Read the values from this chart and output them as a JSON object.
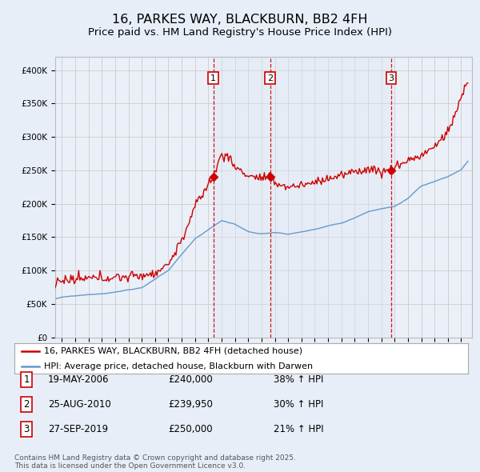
{
  "title": "16, PARKES WAY, BLACKBURN, BB2 4FH",
  "subtitle": "Price paid vs. HM Land Registry's House Price Index (HPI)",
  "title_fontsize": 11.5,
  "subtitle_fontsize": 9.5,
  "bg_color": "#e8eef8",
  "plot_bg_color": "#eaeff8",
  "grid_color": "#cccccc",
  "shade_color": "#dce8f5",
  "ylim": [
    0,
    420000
  ],
  "xlim_start": 1994.5,
  "xlim_end": 2025.8,
  "sale_dates": [
    2006.38,
    2010.65,
    2019.75
  ],
  "sale_prices": [
    240000,
    239950,
    250000
  ],
  "sale_labels": [
    "1",
    "2",
    "3"
  ],
  "sale_info": [
    [
      "1",
      "19-MAY-2006",
      "£240,000",
      "38% ↑ HPI"
    ],
    [
      "2",
      "25-AUG-2010",
      "£239,950",
      "30% ↑ HPI"
    ],
    [
      "3",
      "27-SEP-2019",
      "£250,000",
      "21% ↑ HPI"
    ]
  ],
  "legend_line1": "16, PARKES WAY, BLACKBURN, BB2 4FH (detached house)",
  "legend_line2": "HPI: Average price, detached house, Blackburn with Darwen",
  "footer": "Contains HM Land Registry data © Crown copyright and database right 2025.\nThis data is licensed under the Open Government Licence v3.0.",
  "red_color": "#cc0000",
  "blue_color": "#6699cc",
  "dashed_color": "#cc0000",
  "marker_box_color": "#cc0000",
  "ytick_values": [
    0,
    50000,
    100000,
    150000,
    200000,
    250000,
    300000,
    350000,
    400000
  ]
}
